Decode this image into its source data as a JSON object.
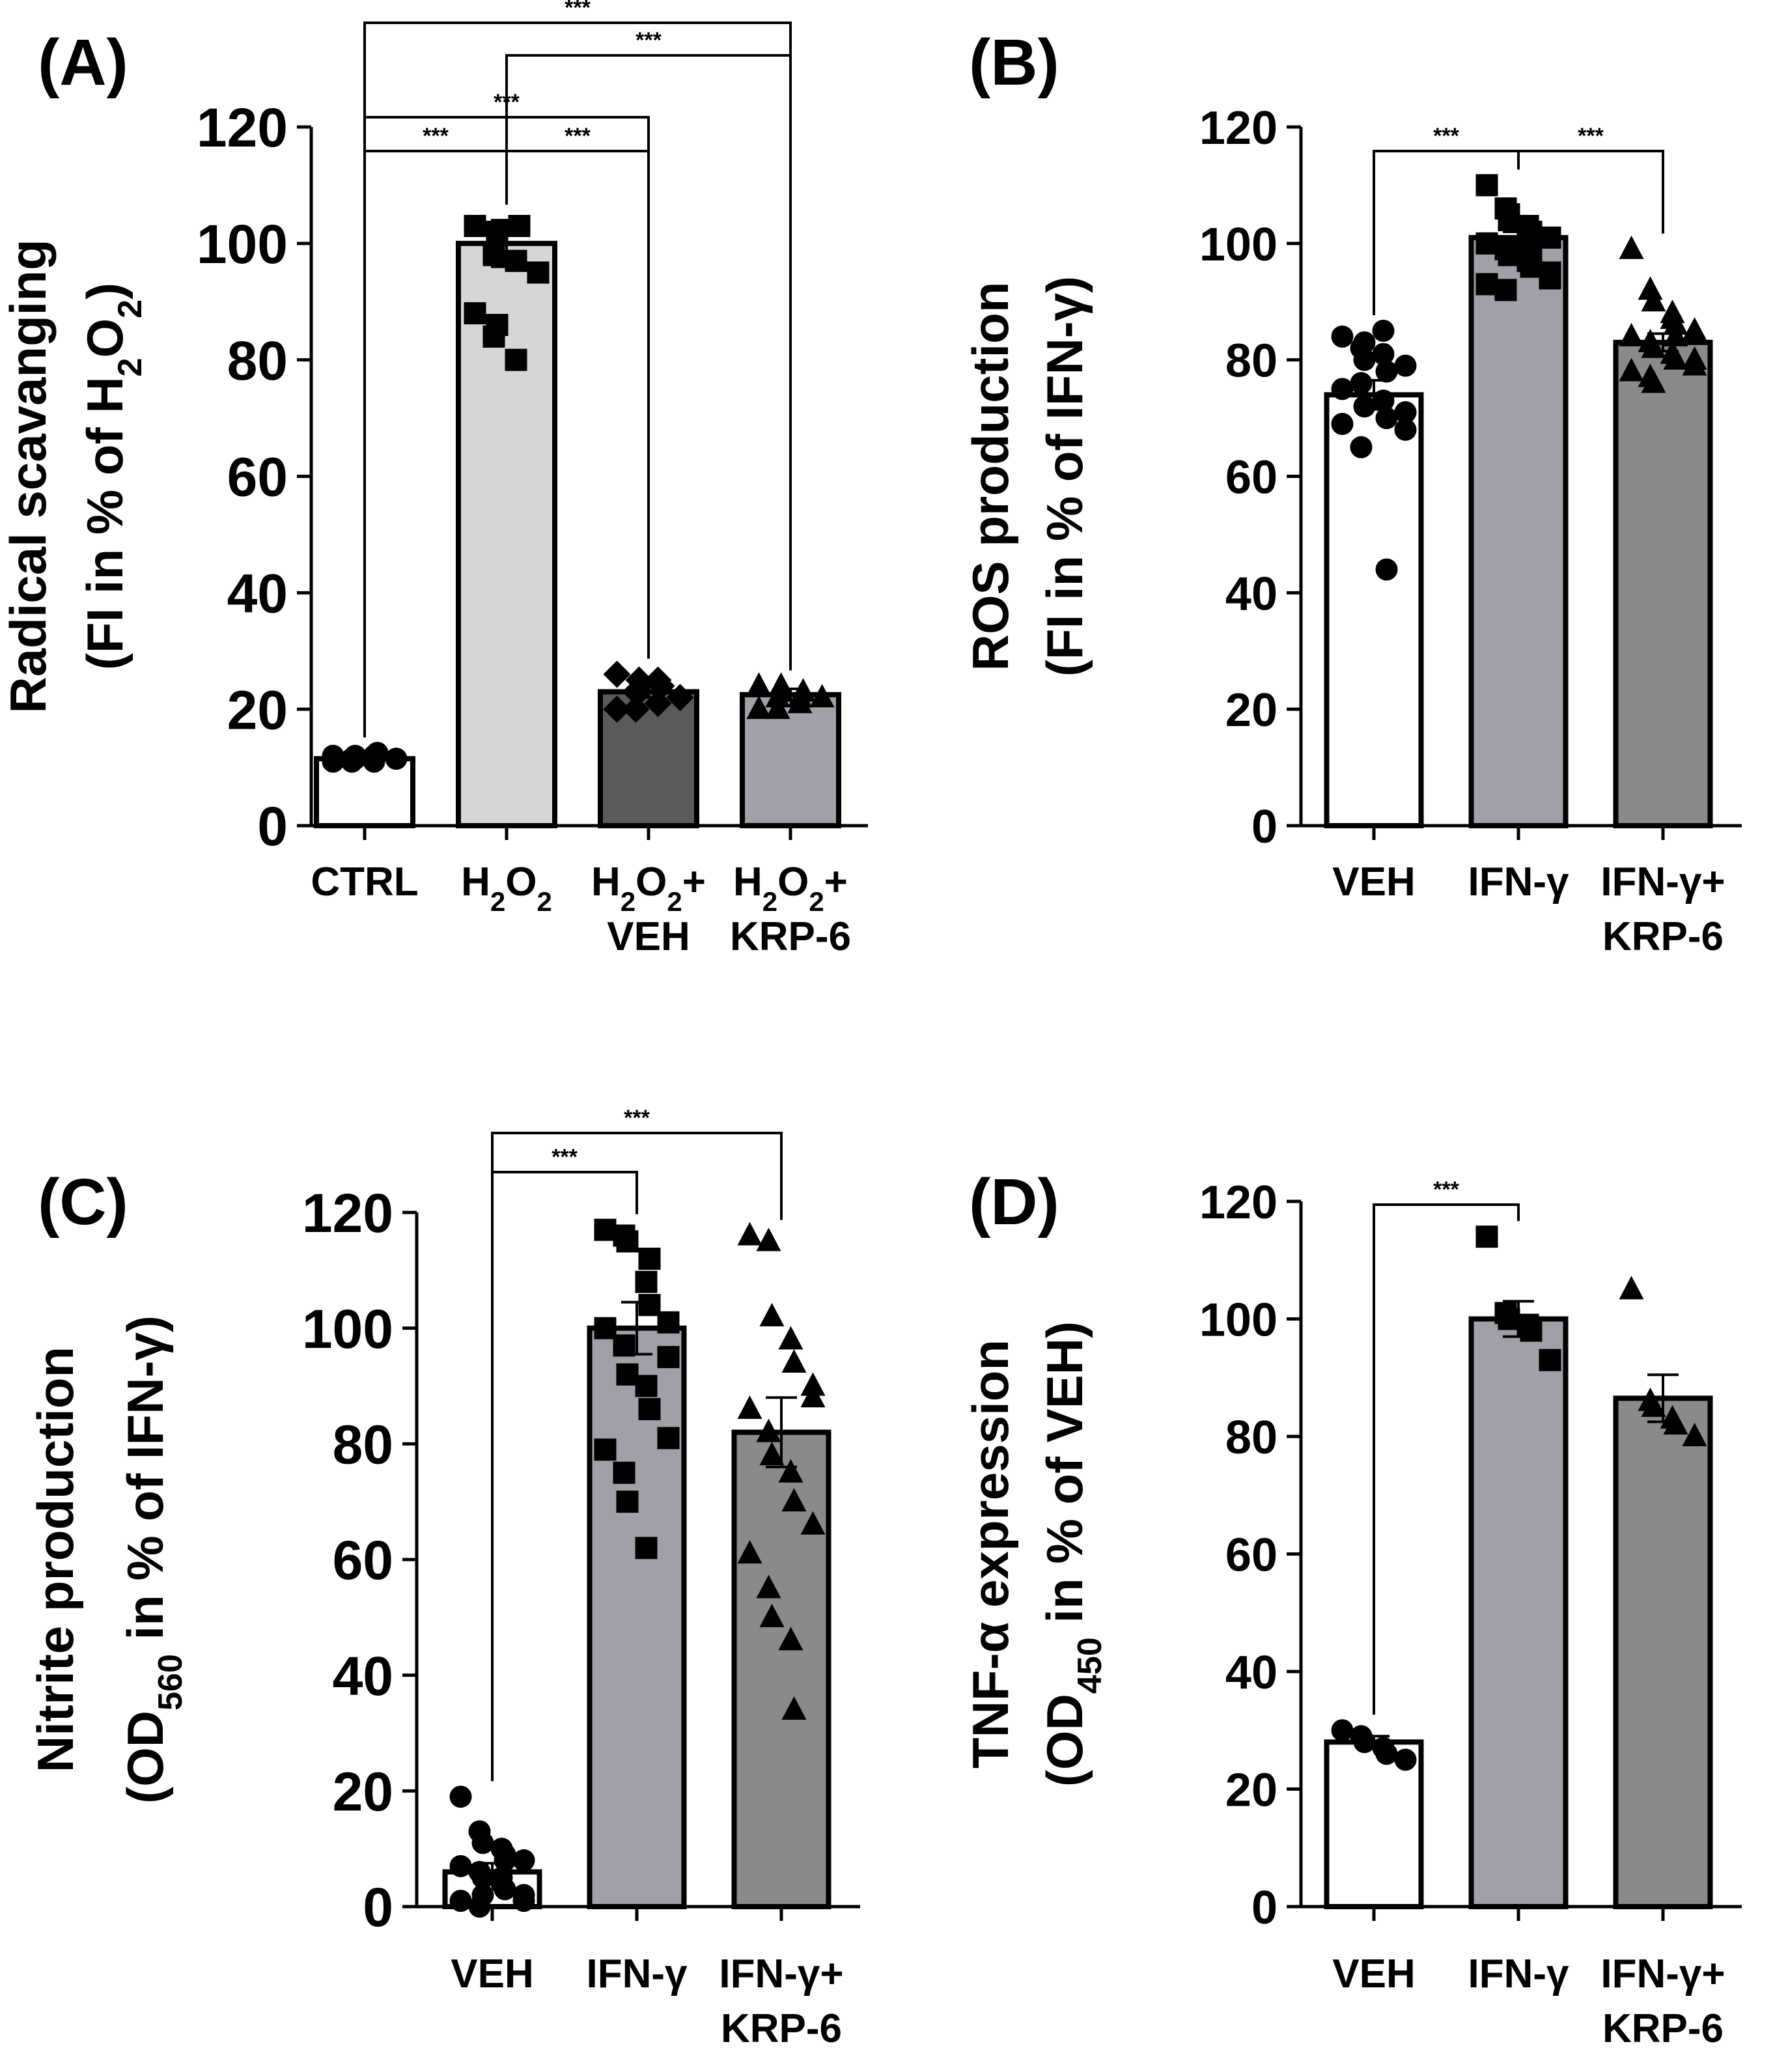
{
  "chart_data": [
    {
      "type": "bar",
      "panel": "(A)",
      "ylabel_line1": "Radical scavanging",
      "ylabel_line2": {
        "pre": "(FI in % of H",
        "sub1": "2",
        "mid": "O",
        "sub2": "2",
        "post": ")"
      },
      "ylim": [
        0,
        120
      ],
      "yticks": [
        "0",
        "20",
        "40",
        "60",
        "80",
        "100",
        "120"
      ],
      "categories": [
        {
          "lines": [
            {
              "parts": [
                {
                  "t": "CTRL"
                }
              ]
            }
          ]
        },
        {
          "lines": [
            {
              "parts": [
                {
                  "t": "H"
                },
                {
                  "t": "2",
                  "sub": true
                },
                {
                  "t": "O"
                },
                {
                  "t": "2",
                  "sub": true
                }
              ]
            }
          ]
        },
        {
          "lines": [
            {
              "parts": [
                {
                  "t": "H"
                },
                {
                  "t": "2",
                  "sub": true
                },
                {
                  "t": "O"
                },
                {
                  "t": "2",
                  "sub": true
                },
                {
                  "t": "+"
                }
              ]
            },
            {
              "parts": [
                {
                  "t": "VEH"
                }
              ]
            }
          ]
        },
        {
          "lines": [
            {
              "parts": [
                {
                  "t": "H"
                },
                {
                  "t": "2",
                  "sub": true
                },
                {
                  "t": "O"
                },
                {
                  "t": "2",
                  "sub": true
                },
                {
                  "t": "+"
                }
              ]
            },
            {
              "parts": [
                {
                  "t": "KRP-6"
                }
              ]
            }
          ]
        }
      ],
      "values": [
        11.5,
        100,
        23,
        22.5
      ],
      "errors": [
        0.5,
        4,
        1,
        1
      ],
      "fills": [
        "#ffffff",
        "#d6d6d6",
        "#5a5a5a",
        "#a0a0a8"
      ],
      "markers": [
        "circle",
        "square",
        "diamond",
        "triangle"
      ],
      "points": [
        [
          11,
          11.5,
          12,
          11,
          12.5,
          11.5,
          12,
          11,
          11.5,
          12
        ],
        [
          103,
          98,
          102,
          97,
          103,
          95,
          88,
          84,
          86,
          80
        ],
        [
          20,
          23,
          25,
          21,
          24,
          22,
          26,
          20,
          23,
          25
        ],
        [
          20,
          22,
          24,
          21,
          23,
          22,
          24,
          20,
          23,
          22
        ]
      ],
      "significance": [
        {
          "from": 0,
          "to": 1,
          "label": "***"
        },
        {
          "from": 1,
          "to": 2,
          "label": "***"
        },
        {
          "from": 0,
          "to": 2,
          "label": "***"
        },
        {
          "from": 1,
          "to": 3,
          "label": "***"
        },
        {
          "from": 0,
          "to": 3,
          "label": "***"
        }
      ]
    },
    {
      "type": "bar",
      "panel": "(B)",
      "ylabel_line1": "ROS production",
      "ylabel_line2": {
        "pre": "(FI in % of IFN-γ)"
      },
      "ylim": [
        0,
        120
      ],
      "yticks": [
        "0",
        "20",
        "40",
        "60",
        "80",
        "100",
        "120"
      ],
      "categories": [
        {
          "lines": [
            {
              "parts": [
                {
                  "t": "VEH"
                }
              ]
            }
          ]
        },
        {
          "lines": [
            {
              "parts": [
                {
                  "t": "IFN-γ"
                }
              ]
            }
          ]
        },
        {
          "lines": [
            {
              "parts": [
                {
                  "t": "IFN-γ+"
                }
              ]
            },
            {
              "parts": [
                {
                  "t": "KRP-6"
                }
              ]
            }
          ]
        }
      ],
      "values": [
        74,
        101,
        83
      ],
      "errors": [
        2.5,
        1,
        1.5
      ],
      "fills": [
        "#ffffff",
        "#a0a0a8",
        "#8a8a8a"
      ],
      "markers": [
        "circle",
        "square",
        "triangle"
      ],
      "points": [
        [
          84,
          82,
          83,
          81,
          78,
          79,
          75,
          76,
          72,
          73,
          70,
          68,
          69,
          65,
          80,
          85,
          44,
          71
        ],
        [
          110,
          106,
          104,
          103,
          102,
          101,
          100,
          99,
          98,
          97,
          96,
          95,
          93,
          92,
          105,
          100,
          99,
          94
        ],
        [
          99,
          92,
          90,
          88,
          86,
          85,
          84,
          83,
          82,
          81,
          80,
          79,
          78,
          77,
          76,
          87,
          84,
          80
        ]
      ],
      "significance": [
        {
          "from": 0,
          "to": 1,
          "label": "***"
        },
        {
          "from": 1,
          "to": 2,
          "label": "***"
        }
      ]
    },
    {
      "type": "bar",
      "panel": "(C)",
      "ylabel_line1": "Nitrite production",
      "ylabel_line2": {
        "pre": "(OD",
        "sub1": "560",
        "mid": " in % of IFN-γ)"
      },
      "ylim": [
        0,
        120
      ],
      "yticks": [
        "0",
        "20",
        "40",
        "60",
        "80",
        "100",
        "120"
      ],
      "categories": [
        {
          "lines": [
            {
              "parts": [
                {
                  "t": "VEH"
                }
              ]
            }
          ]
        },
        {
          "lines": [
            {
              "parts": [
                {
                  "t": "IFN-γ"
                }
              ]
            }
          ]
        },
        {
          "lines": [
            {
              "parts": [
                {
                  "t": "IFN-γ+"
                }
              ]
            },
            {
              "parts": [
                {
                  "t": "KRP-6"
                }
              ]
            }
          ]
        }
      ],
      "values": [
        6,
        100,
        82
      ],
      "errors": [
        1.5,
        4.5,
        6
      ],
      "fills": [
        "#ffffff",
        "#a0a0a8",
        "#8a8a8a"
      ],
      "markers": [
        "circle",
        "square",
        "triangle"
      ],
      "points": [
        [
          19,
          13,
          11,
          10,
          9,
          8,
          7,
          6,
          5,
          4,
          3,
          2,
          1,
          0,
          2,
          5,
          8,
          1
        ],
        [
          117,
          116,
          115,
          108,
          104,
          101,
          100,
          97,
          92,
          90,
          86,
          81,
          79,
          75,
          70,
          62,
          112,
          95
        ],
        [
          116,
          115,
          102,
          98,
          94,
          90,
          86,
          82,
          78,
          75,
          70,
          66,
          61,
          55,
          50,
          46,
          34,
          88
        ]
      ],
      "significance": [
        {
          "from": 0,
          "to": 1,
          "label": "***"
        },
        {
          "from": 0,
          "to": 2,
          "label": "***"
        }
      ]
    },
    {
      "type": "bar",
      "panel": "(D)",
      "ylabel_line1": "TNF-α expression",
      "ylabel_line2": {
        "pre": "(OD",
        "sub1": "450",
        "mid": " in % of VEH)"
      },
      "ylim": [
        0,
        120
      ],
      "yticks": [
        "0",
        "20",
        "40",
        "60",
        "80",
        "100",
        "120"
      ],
      "categories": [
        {
          "lines": [
            {
              "parts": [
                {
                  "t": "VEH"
                }
              ]
            }
          ]
        },
        {
          "lines": [
            {
              "parts": [
                {
                  "t": "IFN-γ"
                }
              ]
            }
          ]
        },
        {
          "lines": [
            {
              "parts": [
                {
                  "t": "IFN-γ+"
                }
              ]
            },
            {
              "parts": [
                {
                  "t": "KRP-6"
                }
              ]
            }
          ]
        }
      ],
      "values": [
        28,
        100,
        86.5
      ],
      "errors": [
        1,
        3,
        4
      ],
      "fills": [
        "#ffffff",
        "#a0a0a8",
        "#8a8a8a"
      ],
      "markers": [
        "circle",
        "square",
        "triangle"
      ],
      "points": [
        [
          30,
          29,
          28,
          27,
          26,
          25
        ],
        [
          114,
          101,
          100,
          99,
          98,
          93
        ],
        [
          105,
          86,
          85,
          83,
          82,
          80
        ]
      ],
      "significance": [
        {
          "from": 0,
          "to": 1,
          "label": "***"
        }
      ]
    }
  ]
}
